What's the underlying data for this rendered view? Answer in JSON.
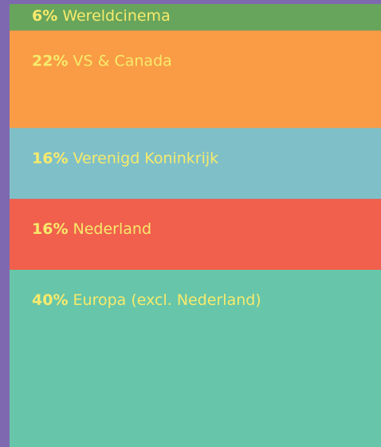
{
  "chart_data": {
    "type": "stacked-bar",
    "categories": [
      "Wereldcinema",
      "VS & Canada",
      "Verenigd Koninkrijk",
      "Nederland",
      "Europa (excl. Nederland)"
    ],
    "values": [
      6,
      22,
      16,
      16,
      40
    ],
    "value_labels": [
      "6%",
      "22%",
      "16%",
      "16%",
      "40%"
    ],
    "colors": [
      "#68a55c",
      "#f99c45",
      "#7fc0c8",
      "#f1604c",
      "#67c6a9"
    ],
    "label_color": "#f7ea6c",
    "background": "#7e69b1",
    "ylim": [
      0,
      100
    ]
  }
}
